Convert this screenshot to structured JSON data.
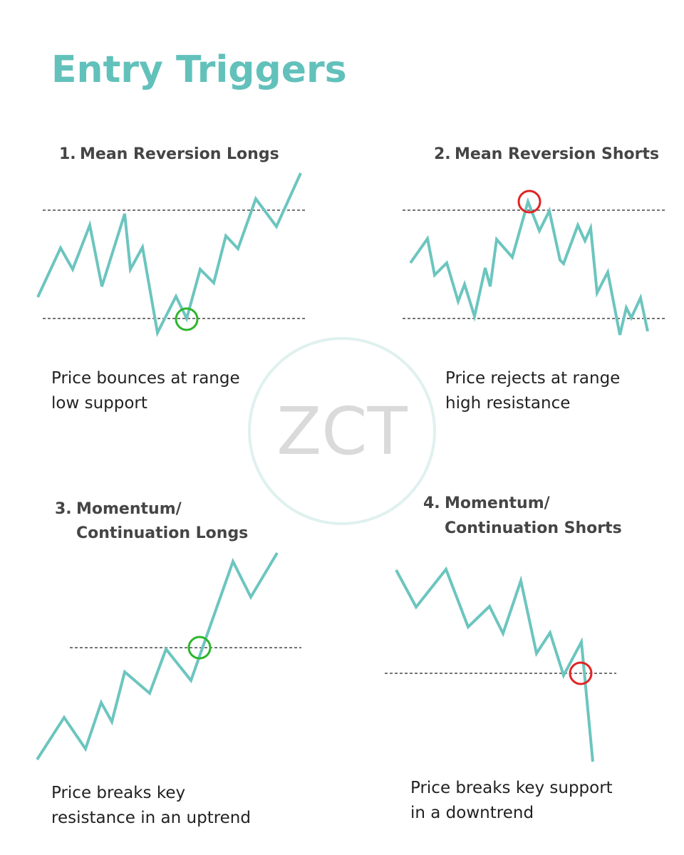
{
  "title": "Entry Triggers",
  "watermark": "ZCT",
  "panels": [
    {
      "number": "1.",
      "heading": [
        "Mean Reversion Longs"
      ],
      "caption": [
        "Price bounces at range",
        "low support"
      ]
    },
    {
      "number": "2.",
      "heading": [
        "Mean Reversion Shorts"
      ],
      "caption": [
        "Price rejects at range",
        "high resistance"
      ]
    },
    {
      "number": "3.",
      "heading": [
        "Momentum/",
        "Continuation Longs"
      ],
      "caption": [
        "Price breaks key",
        "resistance in an uptrend"
      ]
    },
    {
      "number": "4.",
      "heading": [
        "Momentum/",
        "Continuation Shorts"
      ],
      "caption": [
        "Price breaks key support",
        "in a downtrend"
      ]
    }
  ]
}
